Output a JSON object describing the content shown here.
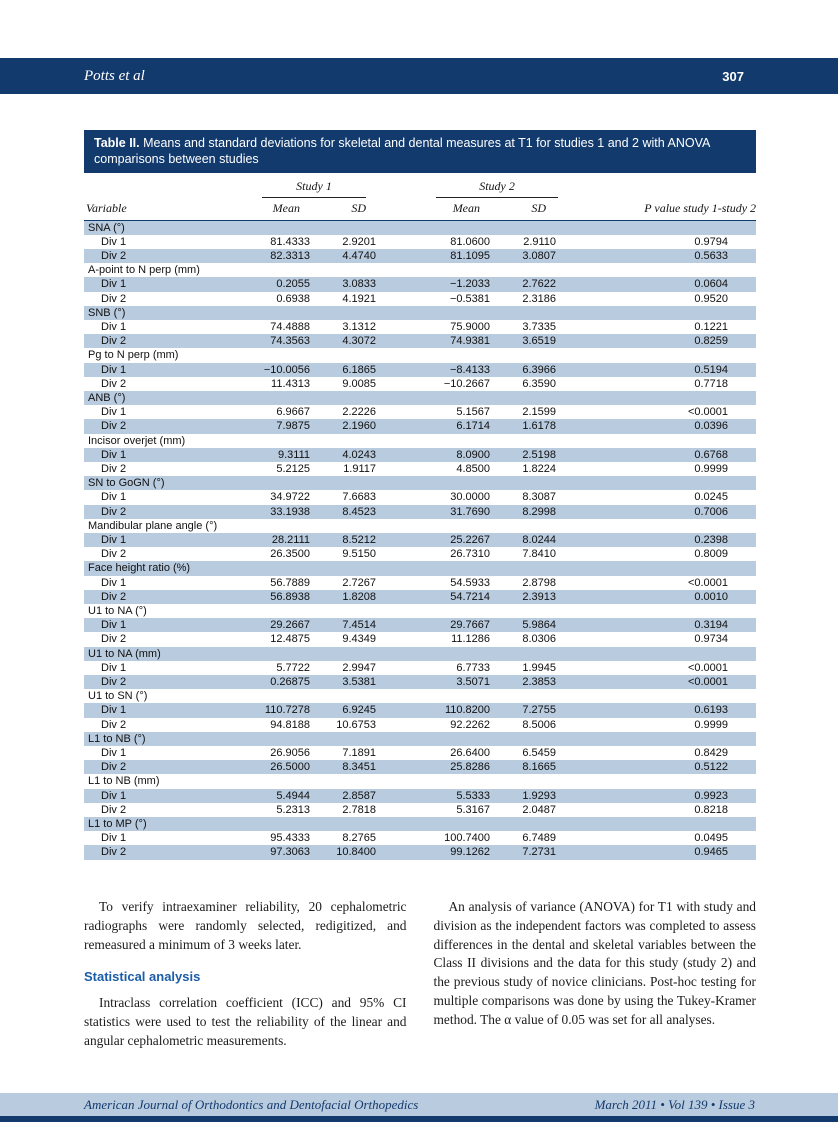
{
  "page": {
    "running_head": "Potts et al",
    "page_number": "307"
  },
  "colors": {
    "navy_band": "#123a6d",
    "row_shade": "#b9cbdf",
    "heading_blue": "#1b5da6"
  },
  "table": {
    "label": "Table II.",
    "caption": "Means and standard deviations for skeletal and dental measures at T1 for studies 1 and 2 with ANOVA comparisons between studies",
    "span_headers": [
      "Study 1",
      "Study 2"
    ],
    "col_headers": {
      "variable": "Variable",
      "mean1": "Mean",
      "sd1": "SD",
      "mean2": "Mean",
      "sd2": "SD",
      "p": "P value study 1-study 2"
    },
    "groups": [
      {
        "label": "SNA (°)",
        "rows": [
          {
            "label": "Div 1",
            "mean1": "81.4333",
            "sd1": "2.9201",
            "mean2": "81.0600",
            "sd2": "2.9110",
            "p": "0.9794"
          },
          {
            "label": "Div 2",
            "mean1": "82.3313",
            "sd1": "4.4740",
            "mean2": "81.1095",
            "sd2": "3.0807",
            "p": "0.5633"
          }
        ]
      },
      {
        "label": "A-point to N perp (mm)",
        "rows": [
          {
            "label": "Div 1",
            "mean1": "0.2055",
            "sd1": "3.0833",
            "mean2": "−1.2033",
            "sd2": "2.7622",
            "p": "0.0604"
          },
          {
            "label": "Div 2",
            "mean1": "0.6938",
            "sd1": "4.1921",
            "mean2": "−0.5381",
            "sd2": "2.3186",
            "p": "0.9520"
          }
        ]
      },
      {
        "label": "SNB (°)",
        "rows": [
          {
            "label": "Div 1",
            "mean1": "74.4888",
            "sd1": "3.1312",
            "mean2": "75.9000",
            "sd2": "3.7335",
            "p": "0.1221"
          },
          {
            "label": "Div 2",
            "mean1": "74.3563",
            "sd1": "4.3072",
            "mean2": "74.9381",
            "sd2": "3.6519",
            "p": "0.8259"
          }
        ]
      },
      {
        "label": "Pg to N perp (mm)",
        "rows": [
          {
            "label": "Div 1",
            "mean1": "−10.0056",
            "sd1": "6.1865",
            "mean2": "−8.4133",
            "sd2": "6.3966",
            "p": "0.5194"
          },
          {
            "label": "Div 2",
            "mean1": "11.4313",
            "sd1": "9.0085",
            "mean2": "−10.2667",
            "sd2": "6.3590",
            "p": "0.7718"
          }
        ]
      },
      {
        "label": "ANB (°)",
        "rows": [
          {
            "label": "Div 1",
            "mean1": "6.9667",
            "sd1": "2.2226",
            "mean2": "5.1567",
            "sd2": "2.1599",
            "p": "<0.0001"
          },
          {
            "label": "Div 2",
            "mean1": "7.9875",
            "sd1": "2.1960",
            "mean2": "6.1714",
            "sd2": "1.6178",
            "p": "0.0396"
          }
        ]
      },
      {
        "label": "Incisor overjet (mm)",
        "rows": [
          {
            "label": "Div 1",
            "mean1": "9.3111",
            "sd1": "4.0243",
            "mean2": "8.0900",
            "sd2": "2.5198",
            "p": "0.6768"
          },
          {
            "label": "Div 2",
            "mean1": "5.2125",
            "sd1": "1.9117",
            "mean2": "4.8500",
            "sd2": "1.8224",
            "p": "0.9999"
          }
        ]
      },
      {
        "label": "SN to GoGN (°)",
        "rows": [
          {
            "label": "Div 1",
            "mean1": "34.9722",
            "sd1": "7.6683",
            "mean2": "30.0000",
            "sd2": "8.3087",
            "p": "0.0245"
          },
          {
            "label": "Div 2",
            "mean1": "33.1938",
            "sd1": "8.4523",
            "mean2": "31.7690",
            "sd2": "8.2998",
            "p": "0.7006"
          }
        ]
      },
      {
        "label": "Mandibular plane angle (°)",
        "rows": [
          {
            "label": "Div 1",
            "mean1": "28.2111",
            "sd1": "8.5212",
            "mean2": "25.2267",
            "sd2": "8.0244",
            "p": "0.2398"
          },
          {
            "label": "Div 2",
            "mean1": "26.3500",
            "sd1": "9.5150",
            "mean2": "26.7310",
            "sd2": "7.8410",
            "p": "0.8009"
          }
        ]
      },
      {
        "label": "Face height ratio (%)",
        "rows": [
          {
            "label": "Div 1",
            "mean1": "56.7889",
            "sd1": "2.7267",
            "mean2": "54.5933",
            "sd2": "2.8798",
            "p": "<0.0001"
          },
          {
            "label": "Div 2",
            "mean1": "56.8938",
            "sd1": "1.8208",
            "mean2": "54.7214",
            "sd2": "2.3913",
            "p": "0.0010"
          }
        ]
      },
      {
        "label": "U1 to NA (°)",
        "rows": [
          {
            "label": "Div 1",
            "mean1": "29.2667",
            "sd1": "7.4514",
            "mean2": "29.7667",
            "sd2": "5.9864",
            "p": "0.3194"
          },
          {
            "label": "Div 2",
            "mean1": "12.4875",
            "sd1": "9.4349",
            "mean2": "11.1286",
            "sd2": "8.0306",
            "p": "0.9734"
          }
        ]
      },
      {
        "label": "U1 to NA (mm)",
        "rows": [
          {
            "label": "Div 1",
            "mean1": "5.7722",
            "sd1": "2.9947",
            "mean2": "6.7733",
            "sd2": "1.9945",
            "p": "<0.0001"
          },
          {
            "label": "Div 2",
            "mean1": "0.26875",
            "sd1": "3.5381",
            "mean2": "3.5071",
            "sd2": "2.3853",
            "p": "<0.0001"
          }
        ]
      },
      {
        "label": "U1 to SN (°)",
        "rows": [
          {
            "label": "Div 1",
            "mean1": "110.7278",
            "sd1": "6.9245",
            "mean2": "110.8200",
            "sd2": "7.2755",
            "p": "0.6193"
          },
          {
            "label": "Div 2",
            "mean1": "94.8188",
            "sd1": "10.6753",
            "mean2": "92.2262",
            "sd2": "8.5006",
            "p": "0.9999"
          }
        ]
      },
      {
        "label": "L1 to NB (°)",
        "rows": [
          {
            "label": "Div 1",
            "mean1": "26.9056",
            "sd1": "7.1891",
            "mean2": "26.6400",
            "sd2": "6.5459",
            "p": "0.8429"
          },
          {
            "label": "Div 2",
            "mean1": "26.5000",
            "sd1": "8.3451",
            "mean2": "25.8286",
            "sd2": "8.1665",
            "p": "0.5122"
          }
        ]
      },
      {
        "label": "L1 to NB (mm)",
        "rows": [
          {
            "label": "Div 1",
            "mean1": "5.4944",
            "sd1": "2.8587",
            "mean2": "5.5333",
            "sd2": "1.9293",
            "p": "0.9923"
          },
          {
            "label": "Div 2",
            "mean1": "5.2313",
            "sd1": "2.7818",
            "mean2": "5.3167",
            "sd2": "2.0487",
            "p": "0.8218"
          }
        ]
      },
      {
        "label": "L1 to MP (°)",
        "rows": [
          {
            "label": "Div 1",
            "mean1": "95.4333",
            "sd1": "8.2765",
            "mean2": "100.7400",
            "sd2": "6.7489",
            "p": "0.0495"
          },
          {
            "label": "Div 2",
            "mean1": "97.3063",
            "sd1": "10.8400",
            "mean2": "99.1262",
            "sd2": "7.2731",
            "p": "0.9465"
          }
        ]
      }
    ]
  },
  "body": {
    "left": {
      "p1": "To verify intraexaminer reliability, 20 cephalometric radiographs were randomly selected, redigitized, and remeasured a minimum of 3 weeks later.",
      "heading": "Statistical analysis",
      "p2": "Intraclass correlation coefficient (ICC) and 95% CI statistics were used to test the reliability of the linear and angular cephalometric measurements."
    },
    "right": {
      "p1": "An analysis of variance (ANOVA) for T1 with study and division as the independent factors was completed to assess differences in the dental and skeletal variables between the Class II divisions and the data for this study (study 2) and the previous study of novice clinicians. Post-hoc testing for multiple comparisons was done by using the Tukey-Kramer method. The α value of 0.05 was set for all analyses."
    }
  },
  "footer": {
    "journal": "American Journal of Orthodontics and Dentofacial Orthopedics",
    "issue": "March 2011 • Vol 139 • Issue 3"
  }
}
